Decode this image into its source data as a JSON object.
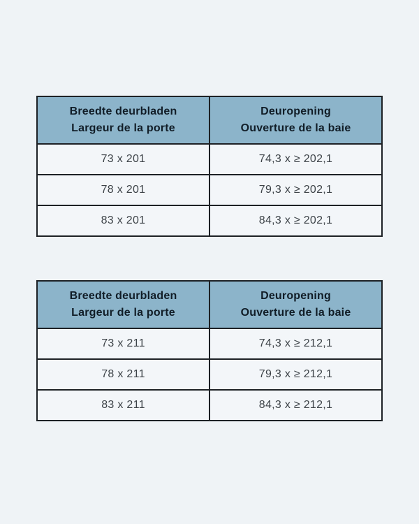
{
  "page": {
    "background": "#eff3f6"
  },
  "colors": {
    "header_bg": "#8cb4ca",
    "cell_bg": "#f3f6f9",
    "border": "#1d2125",
    "header_text": "#111d27",
    "cell_text": "#3d4348"
  },
  "tables": [
    {
      "name": "door-sizes-height-201",
      "columns": [
        {
          "line1": "Breedte deurbladen",
          "line2": "Largeur de la porte"
        },
        {
          "line1": "Deuropening",
          "line2": "Ouverture de la baie"
        }
      ],
      "rows": [
        {
          "door_leaf": "73 x 201",
          "opening": "74,3 x ≥ 202,1"
        },
        {
          "door_leaf": "78 x 201",
          "opening": "79,3 x ≥ 202,1"
        },
        {
          "door_leaf": "83 x 201",
          "opening": "84,3 x ≥ 202,1"
        }
      ]
    },
    {
      "name": "door-sizes-height-211",
      "columns": [
        {
          "line1": "Breedte deurbladen",
          "line2": "Largeur de la porte"
        },
        {
          "line1": "Deuropening",
          "line2": "Ouverture de la baie"
        }
      ],
      "rows": [
        {
          "door_leaf": "73 x 211",
          "opening": "74,3 x ≥ 212,1"
        },
        {
          "door_leaf": "78 x 211",
          "opening": "79,3 x ≥ 212,1"
        },
        {
          "door_leaf": "83 x 211",
          "opening": "84,3 x ≥ 212,1"
        }
      ]
    }
  ]
}
